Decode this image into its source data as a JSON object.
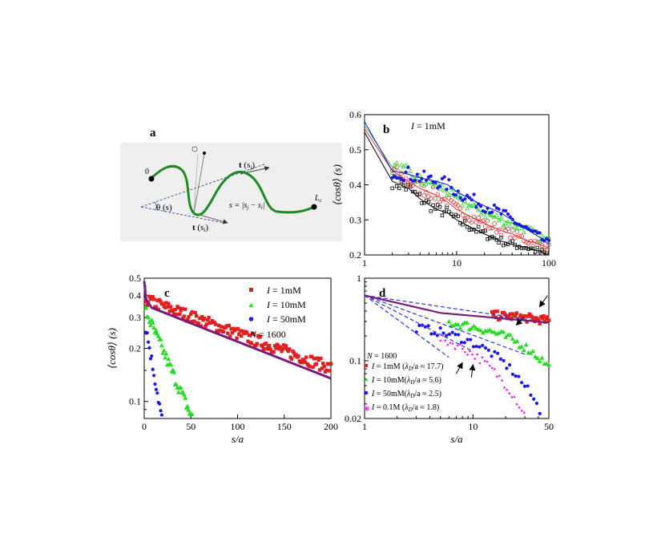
{
  "panel_a": {
    "label": "a",
    "origin_label": "0",
    "end_label": "L",
    "end_sub": "c",
    "theta_label": "θ (s)",
    "tj_label": "t",
    "tj_arg": "(s",
    "tj_sub": "j",
    "ti_label": "t",
    "ti_arg": "(s",
    "ti_sub": "i",
    "s_label": "s = |s",
    "colors": {
      "curve": "#1f8a1f",
      "background": "#efefef",
      "tangent": "#2a4d9f"
    }
  },
  "panel_b": {
    "label": "b",
    "annotation_I": "I",
    "annotation_val": " = 1mM"
  },
  "panel_c": {
    "label": "c",
    "legend": [
      {
        "I": "I",
        "val": " = 1mM"
      },
      {
        "I": "I",
        "val": " = 10mM"
      },
      {
        "I": "I",
        "val": " = 50mM"
      }
    ],
    "n_label": "N",
    "n_val": " = 1600"
  },
  "panel_d": {
    "label": "d",
    "n_label": "N",
    "n_val": " = 1600",
    "legend": [
      {
        "I": "I",
        "val": " = 1mM  (",
        "ratio": "/a ≈ 17.7)"
      },
      {
        "I": "I",
        "val": " = 10mM(",
        "ratio": "/a ≈ 5.6)"
      },
      {
        "I": "I",
        "val": " = 50mM(",
        "ratio": "/a ≈ 2.5)"
      },
      {
        "I": "I",
        "val": " = 0.1M  (",
        "ratio": "/a ≈ 1.8)"
      }
    ],
    "lambda": "λ",
    "lambda_sub": "D"
  },
  "chart_data": [
    {
      "id": "b",
      "type": "line",
      "xscale": "log",
      "yscale": "linear",
      "xlim": [
        1,
        100
      ],
      "ylim": [
        0.2,
        0.6
      ],
      "xticks": [
        "1",
        "10",
        "100"
      ],
      "yticks": [
        "0.2",
        "0.3",
        "0.4",
        "0.5",
        "0.6"
      ],
      "ylabel": "⟨cosθ⟩ (s)",
      "series": [
        {
          "marker": "open-square",
          "color": "#000000",
          "x": [
            1,
            2,
            3,
            4,
            6,
            8,
            10,
            14,
            20,
            30,
            40,
            60,
            80,
            100
          ],
          "y": [
            0.55,
            0.41,
            0.39,
            0.36,
            0.33,
            0.32,
            0.3,
            0.28,
            0.26,
            0.24,
            0.23,
            0.22,
            0.21,
            0.2
          ]
        },
        {
          "marker": "open-circle",
          "color": "#e03030",
          "x": [
            1,
            2,
            3,
            4,
            6,
            8,
            10,
            14,
            20,
            30,
            40,
            60,
            80,
            100
          ],
          "y": [
            0.56,
            0.44,
            0.41,
            0.39,
            0.37,
            0.35,
            0.33,
            0.31,
            0.29,
            0.27,
            0.26,
            0.24,
            0.23,
            0.22
          ]
        },
        {
          "marker": "open-triangle",
          "color": "#2fd12f",
          "x": [
            1,
            2,
            3,
            4,
            6,
            8,
            10,
            14,
            20,
            30,
            40,
            60,
            80,
            100
          ],
          "y": [
            0.57,
            0.45,
            0.43,
            0.41,
            0.4,
            0.38,
            0.36,
            0.34,
            0.32,
            0.3,
            0.29,
            0.27,
            0.25,
            0.24
          ]
        },
        {
          "marker": "filled-circle",
          "color": "#1a1ae6",
          "x": [
            1,
            2,
            3,
            4,
            6,
            8,
            10,
            14,
            20,
            30,
            40,
            60,
            80,
            100
          ],
          "y": [
            0.58,
            0.44,
            0.43,
            0.42,
            0.41,
            0.4,
            0.38,
            0.36,
            0.34,
            0.32,
            0.3,
            0.27,
            0.25,
            0.23
          ]
        }
      ]
    },
    {
      "id": "c",
      "type": "scatter",
      "xscale": "linear",
      "yscale": "log",
      "xlim": [
        0,
        200
      ],
      "ylim": [
        0.08,
        0.5
      ],
      "xticks": [
        "0",
        "50",
        "100",
        "150",
        "200"
      ],
      "yticks": [
        "0.1",
        "0.2",
        "0.3",
        "0.4",
        "0.5"
      ],
      "xlabel": "s/a",
      "ylabel": "⟨cosθ⟩ (s)",
      "series": [
        {
          "name": "I = 1mM",
          "marker": "filled-square",
          "color": "#e02020",
          "a": 0.38,
          "rate": 0.0045,
          "x_end": 200
        },
        {
          "name": "I = 10mM",
          "marker": "filled-triangle",
          "color": "#22dd22",
          "a": 0.34,
          "rate": 0.028,
          "x_end": 90
        },
        {
          "name": "I = 50mM",
          "marker": "filled-circle",
          "color": "#1a1ae6",
          "a": 0.3,
          "rate": 0.07,
          "x_end": 28
        }
      ],
      "fit": {
        "color": "#7a1a7a",
        "x": [
          0,
          2,
          8,
          200
        ],
        "y": [
          0.48,
          0.38,
          0.34,
          0.135
        ]
      }
    },
    {
      "id": "d",
      "type": "scatter",
      "xscale": "log",
      "yscale": "log",
      "xlim": [
        1,
        50
      ],
      "ylim": [
        0.02,
        1
      ],
      "xticks": [
        "1",
        "10",
        "50"
      ],
      "yticks": [
        "0.02",
        "0.1",
        "1"
      ],
      "xlabel": "s/a",
      "series": [
        {
          "name": "I = 1mM",
          "marker": "filled-square",
          "color": "#e02020",
          "a": 0.38,
          "rate": 0.0045,
          "x_start": 15
        },
        {
          "name": "I = 10mM",
          "marker": "filled-triangle",
          "color": "#22dd22",
          "a": 0.34,
          "rate": 0.028,
          "x_start": 6
        },
        {
          "name": "I = 50mM",
          "marker": "filled-circle",
          "color": "#1a1ae6",
          "a": 0.3,
          "rate": 0.06,
          "x_start": 3
        },
        {
          "name": "I = 0.1M",
          "marker": "filled-star",
          "color": "#ee33ee",
          "a": 0.28,
          "rate": 0.085,
          "x_start": 5
        }
      ],
      "dashed_fits": {
        "color": "#3344dd",
        "lines": [
          [
            [
              1,
              0.62
            ],
            [
              50,
              0.29
            ]
          ],
          [
            [
              1,
              0.62
            ],
            [
              30,
              0.12
            ]
          ],
          [
            [
              1,
              0.62
            ],
            [
              10,
              0.13
            ]
          ],
          [
            [
              1,
              0.62
            ],
            [
              6,
              0.11
            ]
          ]
        ]
      },
      "fit": {
        "color": "#7a1a7a",
        "x": [
          1,
          5,
          50
        ],
        "y": [
          0.62,
          0.38,
          0.29
        ]
      },
      "arrows": [
        [
          41,
          0.45
        ],
        [
          25,
          0.27
        ],
        [
          8,
          0.095
        ],
        [
          10,
          0.09
        ]
      ]
    }
  ]
}
